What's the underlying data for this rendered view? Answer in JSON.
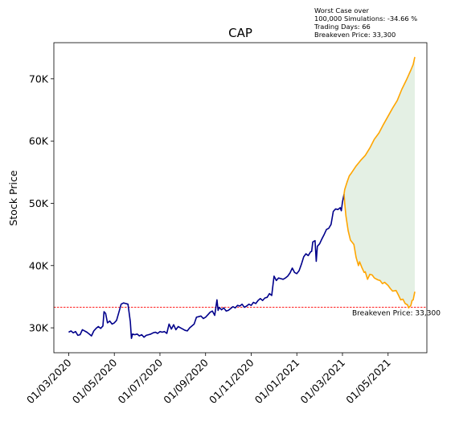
{
  "chart_data": {
    "type": "line",
    "title": "CAP",
    "xlabel": "",
    "ylabel": "Stock Price",
    "x_tick_labels": [
      "01/03/2020",
      "01/05/2020",
      "01/07/2020",
      "01/09/2020",
      "01/11/2020",
      "01/01/2021",
      "01/03/2021",
      "01/05/2021"
    ],
    "x_tick_months": [
      0,
      2,
      4,
      6,
      8,
      10,
      12,
      14
    ],
    "y_tick_labels": [
      "30K",
      "40K",
      "50K",
      "60K",
      "70K"
    ],
    "y_ticks": [
      30000,
      40000,
      50000,
      60000,
      70000
    ],
    "xlim": [
      -0.65,
      15.7
    ],
    "ylim": [
      26000,
      75800
    ],
    "breakeven": {
      "value": 33300,
      "label": "Breakeven Price: 33,300",
      "color": "#ff0000"
    },
    "annotation": [
      "Worst Case over",
      "100,000 Simulations: -34.66 %",
      "Trading Days: 66",
      "Breakeven Price: 33,300"
    ],
    "series": [
      {
        "name": "Historical",
        "color": "#00008b",
        "points": [
          [
            0.0,
            29300
          ],
          [
            0.1,
            29500
          ],
          [
            0.2,
            29200
          ],
          [
            0.3,
            29400
          ],
          [
            0.4,
            28800
          ],
          [
            0.5,
            28900
          ],
          [
            0.6,
            29700
          ],
          [
            0.7,
            29500
          ],
          [
            0.8,
            29300
          ],
          [
            0.9,
            29000
          ],
          [
            1.0,
            28700
          ],
          [
            1.1,
            29500
          ],
          [
            1.2,
            29900
          ],
          [
            1.3,
            30200
          ],
          [
            1.4,
            29900
          ],
          [
            1.5,
            30300
          ],
          [
            1.55,
            32600
          ],
          [
            1.62,
            32300
          ],
          [
            1.7,
            30800
          ],
          [
            1.8,
            31100
          ],
          [
            1.9,
            30600
          ],
          [
            2.0,
            30800
          ],
          [
            2.1,
            31200
          ],
          [
            2.2,
            32500
          ],
          [
            2.3,
            33800
          ],
          [
            2.4,
            34000
          ],
          [
            2.5,
            33900
          ],
          [
            2.6,
            33800
          ],
          [
            2.7,
            31000
          ],
          [
            2.75,
            28300
          ],
          [
            2.8,
            29000
          ],
          [
            2.9,
            28900
          ],
          [
            3.0,
            29000
          ],
          [
            3.1,
            28700
          ],
          [
            3.2,
            28900
          ],
          [
            3.3,
            28500
          ],
          [
            3.4,
            28800
          ],
          [
            3.5,
            28900
          ],
          [
            3.6,
            29000
          ],
          [
            3.7,
            29200
          ],
          [
            3.8,
            29300
          ],
          [
            3.9,
            29100
          ],
          [
            4.0,
            29400
          ],
          [
            4.1,
            29300
          ],
          [
            4.2,
            29400
          ],
          [
            4.3,
            29100
          ],
          [
            4.4,
            30600
          ],
          [
            4.5,
            29800
          ],
          [
            4.6,
            30500
          ],
          [
            4.7,
            29700
          ],
          [
            4.8,
            30200
          ],
          [
            4.9,
            30000
          ],
          [
            5.0,
            29800
          ],
          [
            5.1,
            29600
          ],
          [
            5.2,
            29500
          ],
          [
            5.3,
            30000
          ],
          [
            5.4,
            30300
          ],
          [
            5.5,
            30600
          ],
          [
            5.6,
            31700
          ],
          [
            5.7,
            31800
          ],
          [
            5.8,
            31900
          ],
          [
            5.9,
            31500
          ],
          [
            6.0,
            31700
          ],
          [
            6.1,
            32100
          ],
          [
            6.2,
            32500
          ],
          [
            6.3,
            32700
          ],
          [
            6.4,
            32000
          ],
          [
            6.5,
            34500
          ],
          [
            6.55,
            32800
          ],
          [
            6.6,
            33300
          ],
          [
            6.7,
            32900
          ],
          [
            6.8,
            33200
          ],
          [
            6.9,
            32700
          ],
          [
            7.0,
            32800
          ],
          [
            7.1,
            33100
          ],
          [
            7.2,
            33400
          ],
          [
            7.3,
            33200
          ],
          [
            7.4,
            33600
          ],
          [
            7.5,
            33500
          ],
          [
            7.6,
            33800
          ],
          [
            7.7,
            33300
          ],
          [
            7.8,
            33500
          ],
          [
            7.9,
            33800
          ],
          [
            8.0,
            33600
          ],
          [
            8.1,
            34100
          ],
          [
            8.2,
            33900
          ],
          [
            8.3,
            34400
          ],
          [
            8.4,
            34700
          ],
          [
            8.5,
            34400
          ],
          [
            8.6,
            34800
          ],
          [
            8.7,
            34900
          ],
          [
            8.8,
            35500
          ],
          [
            8.9,
            35200
          ],
          [
            9.0,
            38300
          ],
          [
            9.1,
            37600
          ],
          [
            9.2,
            38000
          ],
          [
            9.3,
            37900
          ],
          [
            9.4,
            37800
          ],
          [
            9.5,
            38000
          ],
          [
            9.6,
            38300
          ],
          [
            9.7,
            38800
          ],
          [
            9.8,
            39600
          ],
          [
            9.9,
            38900
          ],
          [
            10.0,
            38700
          ],
          [
            10.1,
            39200
          ],
          [
            10.2,
            40200
          ],
          [
            10.3,
            41400
          ],
          [
            10.4,
            41900
          ],
          [
            10.5,
            41600
          ],
          [
            10.6,
            42200
          ],
          [
            10.65,
            42300
          ],
          [
            10.7,
            43800
          ],
          [
            10.8,
            44000
          ],
          [
            10.85,
            40700
          ],
          [
            10.9,
            43100
          ],
          [
            11.0,
            43500
          ],
          [
            11.1,
            44300
          ],
          [
            11.2,
            45000
          ],
          [
            11.3,
            45800
          ],
          [
            11.4,
            46000
          ],
          [
            11.5,
            46600
          ],
          [
            11.6,
            48700
          ],
          [
            11.7,
            49100
          ],
          [
            11.8,
            49000
          ],
          [
            11.9,
            49300
          ],
          [
            11.95,
            48800
          ],
          [
            12.0,
            50200
          ],
          [
            12.07,
            51500
          ]
        ]
      },
      {
        "name": "Simulated Upper",
        "color": "#ffa500",
        "points": [
          [
            12.07,
            51500
          ],
          [
            12.1,
            52200
          ],
          [
            12.2,
            53400
          ],
          [
            12.3,
            54400
          ],
          [
            12.4,
            54900
          ],
          [
            12.6,
            56000
          ],
          [
            12.8,
            56900
          ],
          [
            13.0,
            57700
          ],
          [
            13.2,
            58900
          ],
          [
            13.4,
            60300
          ],
          [
            13.6,
            61300
          ],
          [
            13.8,
            62700
          ],
          [
            14.0,
            64000
          ],
          [
            14.2,
            65300
          ],
          [
            14.4,
            66500
          ],
          [
            14.6,
            68300
          ],
          [
            14.8,
            69800
          ],
          [
            15.0,
            71400
          ],
          [
            15.1,
            72300
          ],
          [
            15.17,
            73500
          ]
        ]
      },
      {
        "name": "Simulated Lower",
        "color": "#ffa500",
        "points": [
          [
            12.07,
            51500
          ],
          [
            12.1,
            50000
          ],
          [
            12.15,
            48000
          ],
          [
            12.2,
            46800
          ],
          [
            12.25,
            45600
          ],
          [
            12.35,
            44100
          ],
          [
            12.5,
            43400
          ],
          [
            12.6,
            41300
          ],
          [
            12.7,
            40000
          ],
          [
            12.75,
            40600
          ],
          [
            12.85,
            39700
          ],
          [
            12.95,
            38900
          ],
          [
            13.0,
            39000
          ],
          [
            13.1,
            37800
          ],
          [
            13.2,
            38600
          ],
          [
            13.3,
            38500
          ],
          [
            13.4,
            38000
          ],
          [
            13.55,
            37700
          ],
          [
            13.65,
            37600
          ],
          [
            13.75,
            37100
          ],
          [
            13.85,
            37300
          ],
          [
            14.0,
            36800
          ],
          [
            14.1,
            36300
          ],
          [
            14.2,
            35900
          ],
          [
            14.35,
            36000
          ],
          [
            14.45,
            35300
          ],
          [
            14.55,
            34500
          ],
          [
            14.65,
            34600
          ],
          [
            14.75,
            33900
          ],
          [
            14.85,
            33700
          ],
          [
            14.9,
            33200
          ],
          [
            15.0,
            33600
          ],
          [
            15.05,
            34400
          ],
          [
            15.1,
            34500
          ],
          [
            15.17,
            35800
          ]
        ]
      }
    ],
    "fill_color": "#2e8b2e"
  }
}
